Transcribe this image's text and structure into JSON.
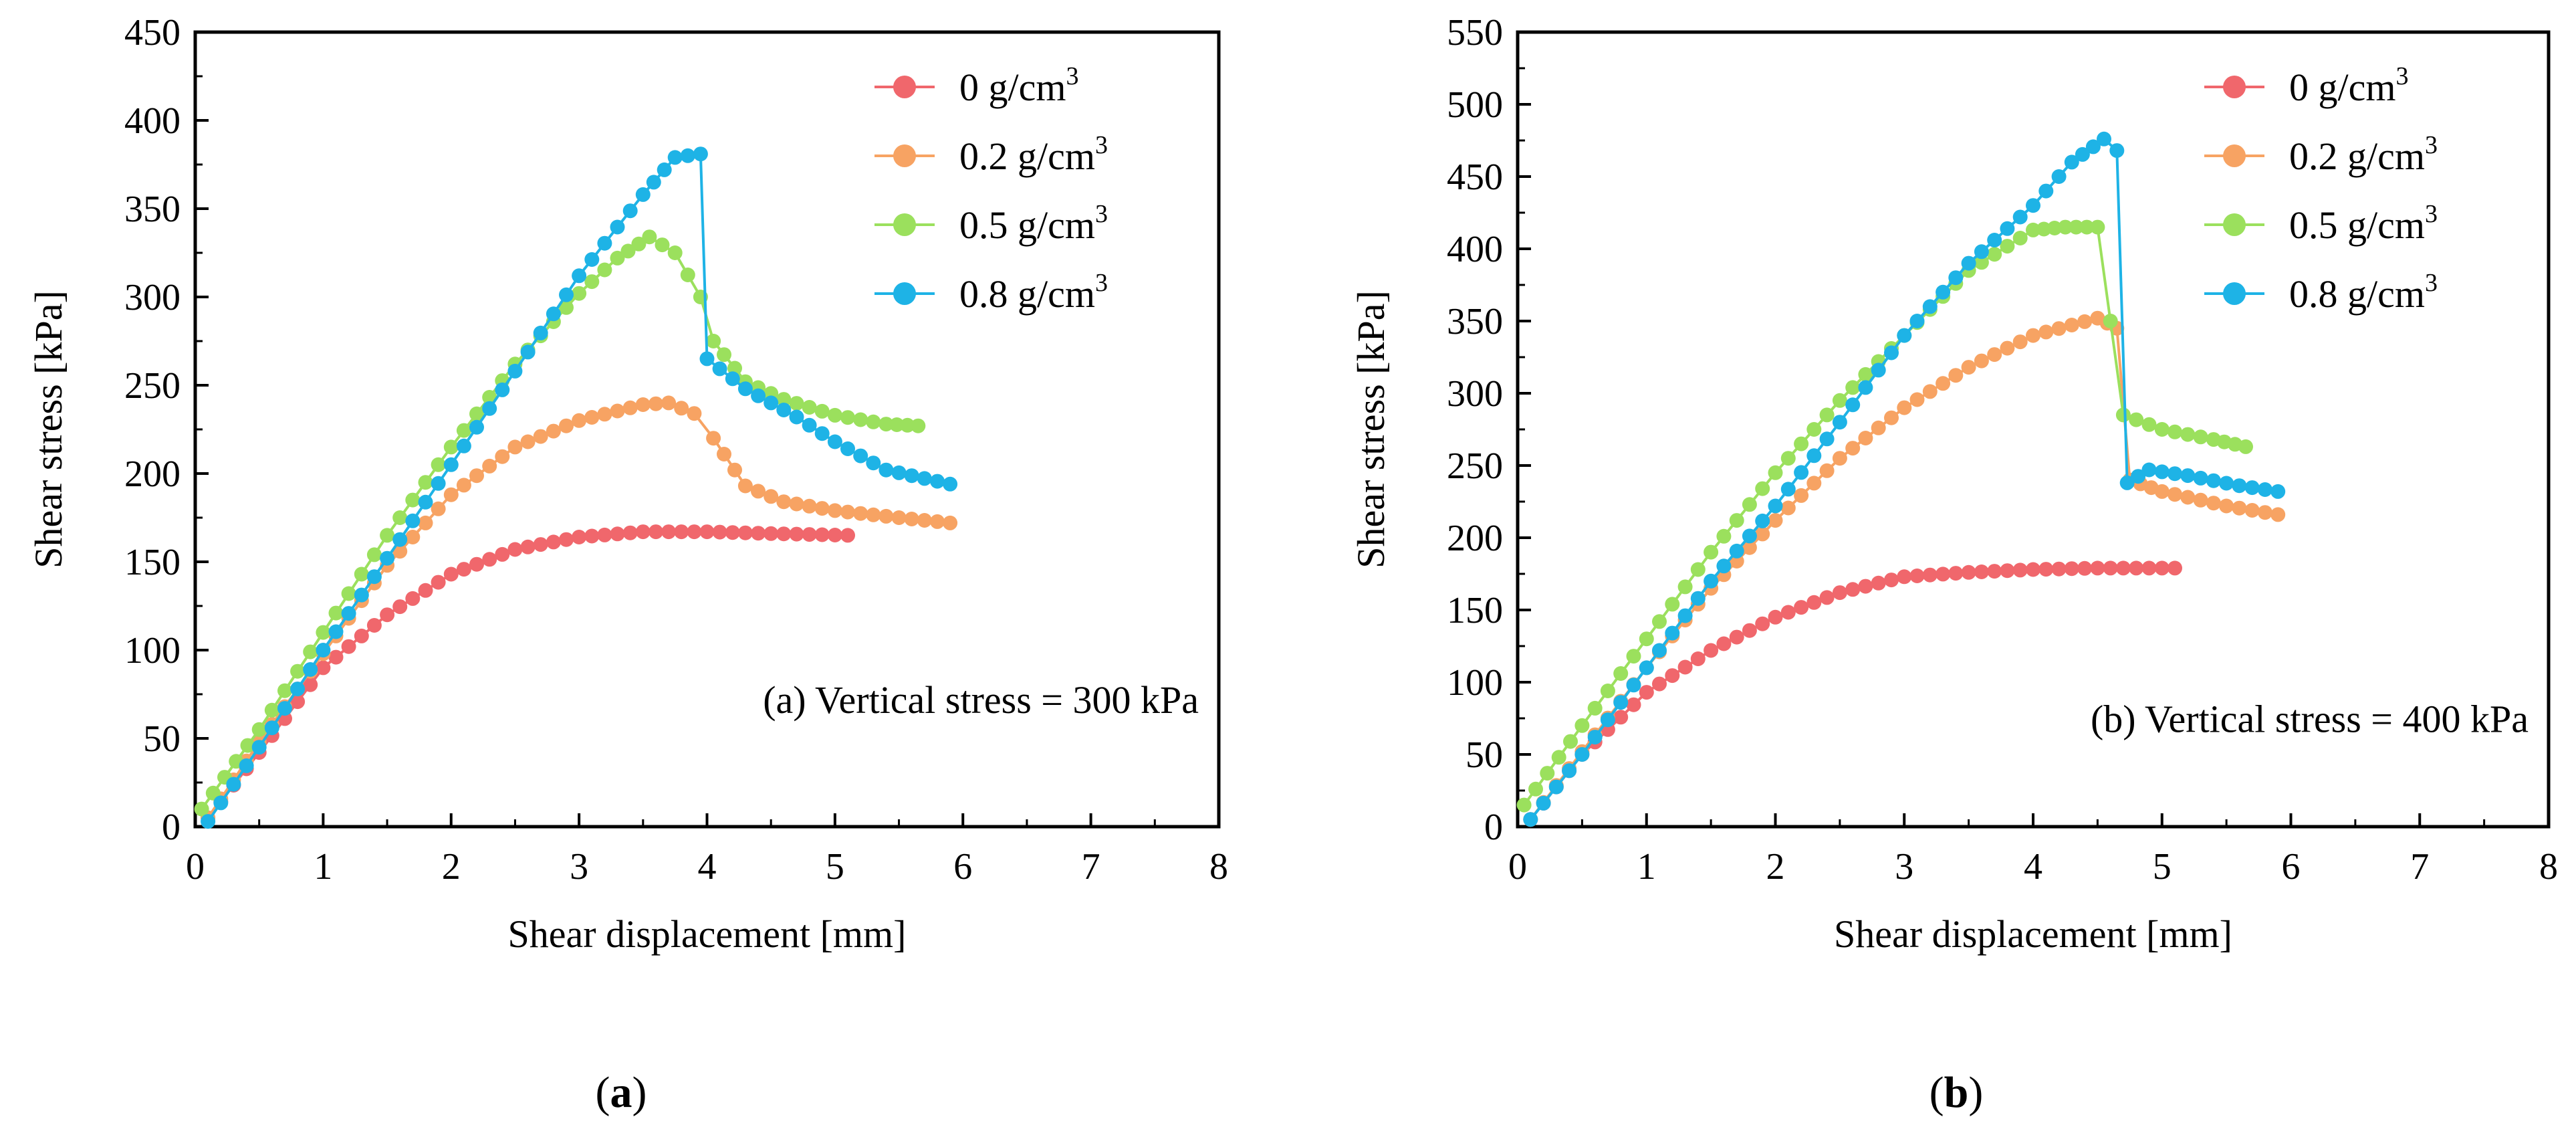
{
  "chart_data": [
    {
      "type": "line",
      "panel_caption": "a",
      "annotation": "(a) Vertical stress = 300 kPa",
      "xlabel": "Shear displacement [mm]",
      "ylabel": "Shear stress [kPa]",
      "xlim": [
        0,
        8
      ],
      "ylim": [
        0,
        450
      ],
      "xticks": [
        0,
        1,
        2,
        3,
        4,
        5,
        6,
        7,
        8
      ],
      "yticks": [
        0,
        50,
        100,
        150,
        200,
        250,
        300,
        350,
        400,
        450
      ],
      "legend_position": "top-right",
      "series": [
        {
          "name": "0 g/cm",
          "sup": "3",
          "color": "#f0676c",
          "points": [
            [
              0.1,
              5
            ],
            [
              0.5,
              42
            ],
            [
              1.0,
              90
            ],
            [
              1.5,
              120
            ],
            [
              2.0,
              143
            ],
            [
              2.5,
              157
            ],
            [
              3.0,
              164
            ],
            [
              3.5,
              167
            ],
            [
              4.0,
              167
            ],
            [
              4.5,
              166
            ],
            [
              5.1,
              165
            ]
          ]
        },
        {
          "name": "0.2 g/cm",
          "sup": "3",
          "color": "#f7a363",
          "points": [
            [
              0.1,
              5
            ],
            [
              0.5,
              48
            ],
            [
              1.0,
              98
            ],
            [
              1.5,
              148
            ],
            [
              2.0,
              188
            ],
            [
              2.5,
              215
            ],
            [
              3.0,
              230
            ],
            [
              3.5,
              239
            ],
            [
              3.7,
              240
            ],
            [
              3.9,
              234
            ],
            [
              4.05,
              220
            ],
            [
              4.3,
              193
            ],
            [
              4.6,
              184
            ],
            [
              5.0,
              179
            ],
            [
              5.5,
              175
            ],
            [
              5.9,
              172
            ]
          ]
        },
        {
          "name": "0.5 g/cm",
          "sup": "3",
          "color": "#9be05d",
          "points": [
            [
              0.05,
              10
            ],
            [
              0.5,
              55
            ],
            [
              1.0,
              110
            ],
            [
              1.5,
              165
            ],
            [
              2.0,
              215
            ],
            [
              2.5,
              262
            ],
            [
              3.0,
              302
            ],
            [
              3.3,
              322
            ],
            [
              3.55,
              334
            ],
            [
              3.75,
              325
            ],
            [
              3.95,
              300
            ],
            [
              4.05,
              275
            ],
            [
              4.3,
              252
            ],
            [
              4.6,
              242
            ],
            [
              5.0,
              233
            ],
            [
              5.4,
              228
            ],
            [
              5.65,
              227
            ]
          ]
        },
        {
          "name": "0.8 g/cm",
          "sup": "3",
          "color": "#1eb3e6",
          "points": [
            [
              0.1,
              3
            ],
            [
              0.5,
              45
            ],
            [
              1.0,
              100
            ],
            [
              1.5,
              152
            ],
            [
              2.0,
              205
            ],
            [
              2.5,
              258
            ],
            [
              3.0,
              312
            ],
            [
              3.5,
              358
            ],
            [
              3.75,
              379
            ],
            [
              3.95,
              381
            ],
            [
              4.0,
              265
            ],
            [
              4.3,
              248
            ],
            [
              4.7,
              232
            ],
            [
              5.0,
              218
            ],
            [
              5.4,
              202
            ],
            [
              5.9,
              194
            ]
          ]
        }
      ]
    },
    {
      "type": "line",
      "panel_caption": "b",
      "annotation": "(b) Vertical stress = 400 kPa",
      "xlabel": "Shear displacement [mm]",
      "ylabel": "Shear stress [kPa]",
      "xlim": [
        0,
        8
      ],
      "ylim": [
        0,
        550
      ],
      "xticks": [
        0,
        1,
        2,
        3,
        4,
        5,
        6,
        7,
        8
      ],
      "yticks": [
        0,
        50,
        100,
        150,
        200,
        250,
        300,
        350,
        400,
        450,
        500,
        550
      ],
      "legend_position": "top-right",
      "series": [
        {
          "name": "0 g/cm",
          "sup": "3",
          "color": "#f0676c",
          "points": [
            [
              0.1,
              5
            ],
            [
              0.5,
              50
            ],
            [
              1.0,
              93
            ],
            [
              1.5,
              122
            ],
            [
              2.0,
              145
            ],
            [
              2.5,
              162
            ],
            [
              3.0,
              173
            ],
            [
              3.5,
              176
            ],
            [
              4.0,
              178
            ],
            [
              4.5,
              179
            ],
            [
              5.1,
              179
            ]
          ]
        },
        {
          "name": "0.2 g/cm",
          "sup": "3",
          "color": "#f7a363",
          "points": [
            [
              0.1,
              5
            ],
            [
              0.5,
              52
            ],
            [
              1.0,
              110
            ],
            [
              1.5,
              165
            ],
            [
              2.0,
              212
            ],
            [
              2.5,
              255
            ],
            [
              3.0,
              290
            ],
            [
              3.5,
              318
            ],
            [
              4.0,
              340
            ],
            [
              4.5,
              352
            ],
            [
              4.65,
              345
            ],
            [
              4.75,
              240
            ],
            [
              5.0,
              232
            ],
            [
              5.5,
              222
            ],
            [
              5.9,
              216
            ]
          ]
        },
        {
          "name": "0.5 g/cm",
          "sup": "3",
          "color": "#9be05d",
          "points": [
            [
              0.05,
              15
            ],
            [
              0.5,
              70
            ],
            [
              1.0,
              130
            ],
            [
              1.5,
              190
            ],
            [
              2.0,
              245
            ],
            [
              2.5,
              295
            ],
            [
              3.0,
              340
            ],
            [
              3.5,
              385
            ],
            [
              4.0,
              413
            ],
            [
              4.25,
              415
            ],
            [
              4.5,
              415
            ],
            [
              4.7,
              285
            ],
            [
              5.0,
              275
            ],
            [
              5.4,
              268
            ],
            [
              5.65,
              263
            ]
          ]
        },
        {
          "name": "0.8 g/cm",
          "sup": "3",
          "color": "#1eb3e6",
          "points": [
            [
              0.1,
              5
            ],
            [
              0.5,
              50
            ],
            [
              1.0,
              110
            ],
            [
              1.5,
              170
            ],
            [
              2.0,
              222
            ],
            [
              2.5,
              280
            ],
            [
              3.0,
              340
            ],
            [
              3.5,
              390
            ],
            [
              4.0,
              430
            ],
            [
              4.3,
              460
            ],
            [
              4.55,
              476
            ],
            [
              4.65,
              468
            ],
            [
              4.73,
              238
            ],
            [
              4.9,
              247
            ],
            [
              5.2,
              243
            ],
            [
              5.6,
              236
            ],
            [
              5.9,
              232
            ]
          ]
        }
      ]
    }
  ]
}
